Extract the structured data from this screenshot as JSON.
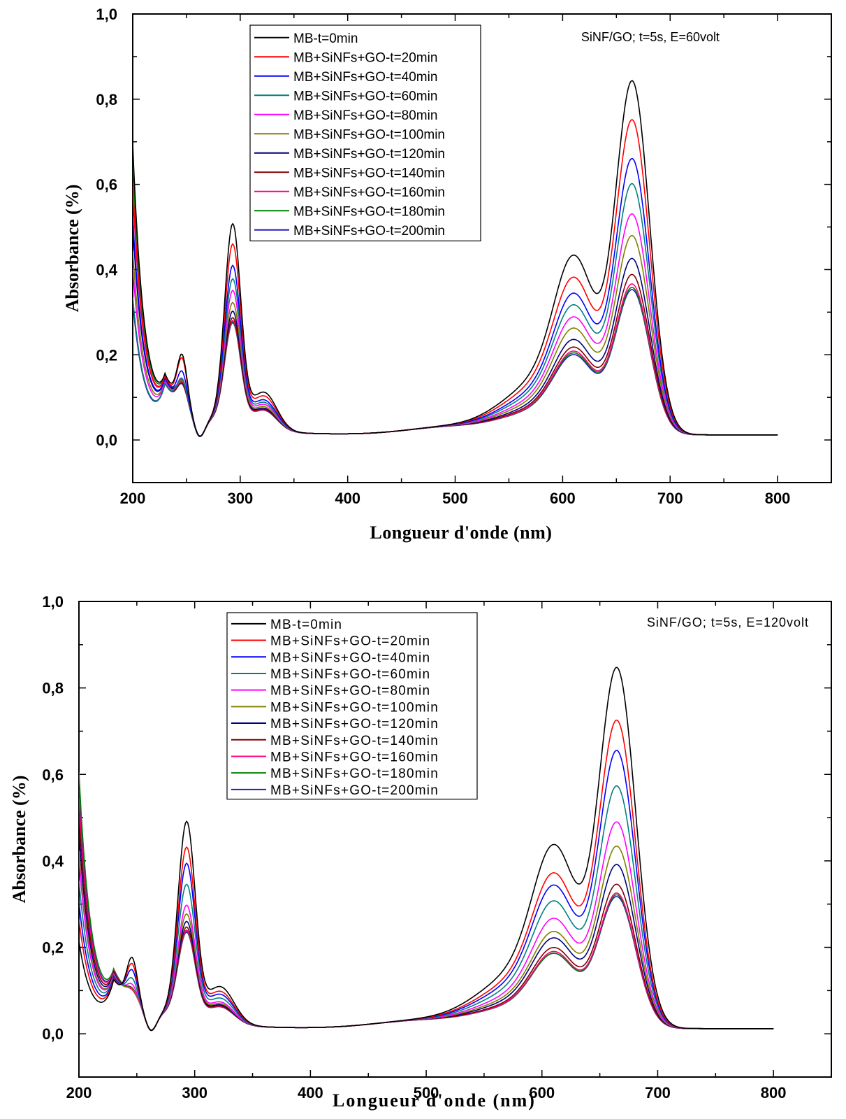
{
  "chart_data": [
    {
      "type": "line",
      "annotation": "SiNF/GO; t=5s, E=60volt",
      "xlabel": "Longueur d'onde (nm)",
      "ylabel": "Absorbance (%)",
      "xlim": [
        200,
        850
      ],
      "ylim": [
        -0.1,
        1.0
      ],
      "xticks": [
        "200",
        "300",
        "400",
        "500",
        "600",
        "700",
        "800"
      ],
      "yticks": [
        "0,0",
        "0,2",
        "0,4",
        "0,6",
        "0,8",
        "1,0"
      ],
      "legend_position": "top-center",
      "grid": false,
      "series": [
        {
          "name": "MB-t=0min",
          "color": "#000000",
          "start": 0.69,
          "p246": 0.232,
          "p293": 0.49,
          "shoulder": 0.47,
          "peak": 0.868
        },
        {
          "name": "MB+SiNFs+GO-t=20min",
          "color": "#ff0000",
          "start": 0.6,
          "p246": 0.225,
          "p293": 0.443,
          "shoulder": 0.41,
          "peak": 0.778
        },
        {
          "name": "MB+SiNFs+GO-t=40min",
          "color": "#0000ff",
          "start": 0.52,
          "p246": 0.195,
          "p293": 0.393,
          "shoulder": 0.37,
          "peak": 0.688
        },
        {
          "name": "MB+SiNFs+GO-t=60min",
          "color": "#008080",
          "start": 0.33,
          "p246": 0.18,
          "p293": 0.362,
          "shoulder": 0.34,
          "peak": 0.63
        },
        {
          "name": "MB+SiNFs+GO-t=80min",
          "color": "#ff00ff",
          "start": 0.4,
          "p246": 0.18,
          "p293": 0.335,
          "shoulder": 0.31,
          "peak": 0.56
        },
        {
          "name": "MB+SiNFs+GO-t=100min",
          "color": "#808000",
          "start": 0.44,
          "p246": 0.175,
          "p293": 0.307,
          "shoulder": 0.28,
          "peak": 0.51
        },
        {
          "name": "MB+SiNFs+GO-t=120min",
          "color": "#000080",
          "start": 0.5,
          "p246": 0.175,
          "p293": 0.287,
          "shoulder": 0.25,
          "peak": 0.457
        },
        {
          "name": "MB+SiNFs+GO-t=140min",
          "color": "#800000",
          "start": 0.33,
          "p246": 0.17,
          "p293": 0.272,
          "shoulder": 0.23,
          "peak": 0.42
        },
        {
          "name": "MB+SiNFs+GO-t=160min",
          "color": "#ff0080",
          "start": 0.58,
          "p246": 0.17,
          "p293": 0.265,
          "shoulder": 0.22,
          "peak": 0.398
        },
        {
          "name": "MB+SiNFs+GO-t=180min",
          "color": "#008000",
          "start": 0.65,
          "p246": 0.168,
          "p293": 0.262,
          "shoulder": 0.215,
          "peak": 0.39
        },
        {
          "name": "MB+SiNFs+GO-t=200min",
          "color": "#2020c0",
          "start": 0.32,
          "p246": 0.168,
          "p293": 0.26,
          "shoulder": 0.21,
          "peak": 0.385
        }
      ]
    },
    {
      "type": "line",
      "annotation": "SiNF/GO; t=5s, E=120volt",
      "xlabel": "Longueur d'onde (nm)",
      "ylabel": "Absorbance (%)",
      "xlim": [
        200,
        850
      ],
      "ylim": [
        -0.1,
        1.0
      ],
      "xticks": [
        "200",
        "300",
        "400",
        "500",
        "600",
        "700",
        "800"
      ],
      "yticks": [
        "0,0",
        "0,2",
        "0,4",
        "0,6",
        "0,8",
        "1,0"
      ],
      "legend_position": "top-center",
      "grid": false,
      "series": [
        {
          "name": "MB-t=0min",
          "color": "#000000",
          "start": 0.21,
          "p246": 0.215,
          "p293": 0.474,
          "shoulder": 0.475,
          "peak": 0.872
        },
        {
          "name": "MB+SiNFs+GO-t=20min",
          "color": "#ff0000",
          "start": 0.26,
          "p246": 0.2,
          "p293": 0.415,
          "shoulder": 0.4,
          "peak": 0.752
        },
        {
          "name": "MB+SiNFs+GO-t=40min",
          "color": "#0000ff",
          "start": 0.3,
          "p246": 0.185,
          "p293": 0.378,
          "shoulder": 0.37,
          "peak": 0.683
        },
        {
          "name": "MB+SiNFs+GO-t=60min",
          "color": "#008080",
          "start": 0.35,
          "p246": 0.165,
          "p293": 0.33,
          "shoulder": 0.33,
          "peak": 0.602
        },
        {
          "name": "MB+SiNFs+GO-t=80min",
          "color": "#ff00ff",
          "start": 0.4,
          "p246": 0.15,
          "p293": 0.282,
          "shoulder": 0.285,
          "peak": 0.52
        },
        {
          "name": "MB+SiNFs+GO-t=100min",
          "color": "#808000",
          "start": 0.42,
          "p246": 0.14,
          "p293": 0.262,
          "shoulder": 0.25,
          "peak": 0.465
        },
        {
          "name": "MB+SiNFs+GO-t=120min",
          "color": "#000080",
          "start": 0.46,
          "p246": 0.14,
          "p293": 0.245,
          "shoulder": 0.235,
          "peak": 0.423
        },
        {
          "name": "MB+SiNFs+GO-t=140min",
          "color": "#800000",
          "start": 0.5,
          "p246": 0.14,
          "p293": 0.232,
          "shoulder": 0.21,
          "peak": 0.378
        },
        {
          "name": "MB+SiNFs+GO-t=160min",
          "color": "#ff0080",
          "start": 0.54,
          "p246": 0.135,
          "p293": 0.225,
          "shoulder": 0.2,
          "peak": 0.358
        },
        {
          "name": "MB+SiNFs+GO-t=180min",
          "color": "#008000",
          "start": 0.6,
          "p246": 0.135,
          "p293": 0.222,
          "shoulder": 0.195,
          "peak": 0.354
        },
        {
          "name": "MB+SiNFs+GO-t=200min",
          "color": "#2020c0",
          "start": 0.56,
          "p246": 0.135,
          "p293": 0.22,
          "shoulder": 0.195,
          "peak": 0.35
        }
      ]
    }
  ]
}
